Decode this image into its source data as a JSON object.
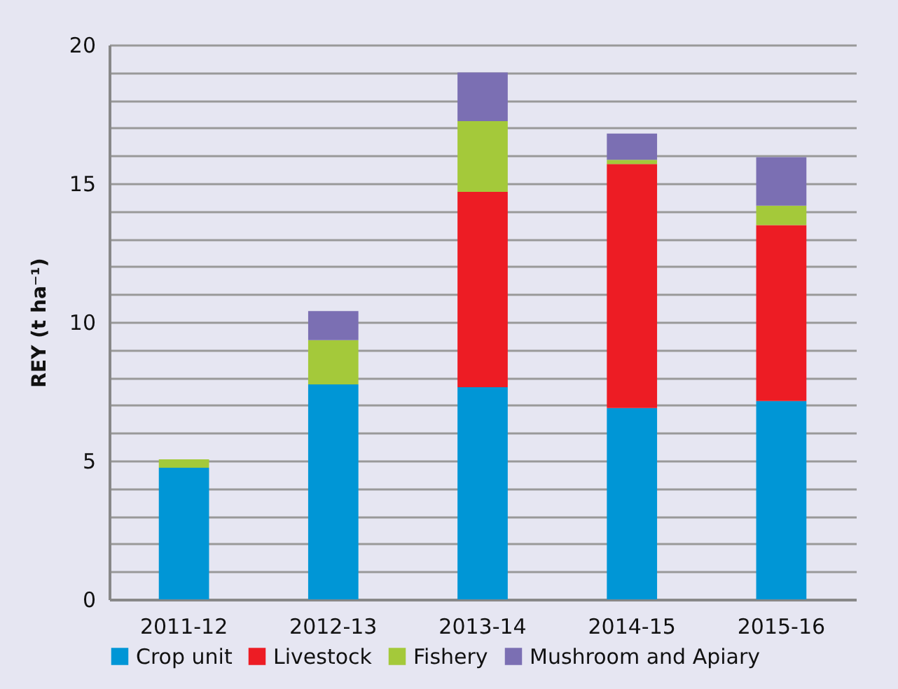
{
  "chart_data": {
    "type": "bar",
    "stacked": true,
    "ylabel": "REY (t ha⁻¹)",
    "categories": [
      "2011-12",
      "2012-13",
      "2013-14",
      "2014-15",
      "2015-16"
    ],
    "series": [
      {
        "name": "Crop unit",
        "color": "#0096d6",
        "values": [
          4.75,
          7.75,
          7.65,
          6.9,
          7.15
        ]
      },
      {
        "name": "Livestock",
        "color": "#ed1c24",
        "values": [
          null,
          null,
          7.05,
          8.8,
          6.35
        ]
      },
      {
        "name": "Fishery",
        "color": "#a4c93a",
        "values": [
          0.3,
          1.6,
          2.55,
          0.15,
          0.7
        ]
      },
      {
        "name": "Mushroom and Apiary",
        "color": "#7b6fb3",
        "values": [
          null,
          1.05,
          1.75,
          0.95,
          1.75
        ]
      }
    ],
    "ylim": [
      0,
      20
    ],
    "yticks": [
      0,
      {
        "value": 1,
        "label": null
      },
      {
        "value": 2,
        "label": null
      },
      {
        "value": 3,
        "label": null
      },
      {
        "value": 4,
        "label": null
      },
      5,
      {
        "value": 6,
        "label": null
      },
      {
        "value": 7,
        "label": null
      },
      {
        "value": 8,
        "label": null
      },
      {
        "value": 9,
        "label": null
      },
      10,
      {
        "value": 11,
        "label": null
      },
      {
        "value": 12,
        "label": null
      },
      {
        "value": 13,
        "label": null
      },
      {
        "value": 14,
        "label": null
      },
      15,
      {
        "value": 16,
        "label": null
      },
      {
        "value": 17,
        "label": null
      },
      {
        "value": 18,
        "label": null
      },
      {
        "value": 19,
        "label": null
      },
      20
    ],
    "grid": "y",
    "legend": "bottom"
  }
}
